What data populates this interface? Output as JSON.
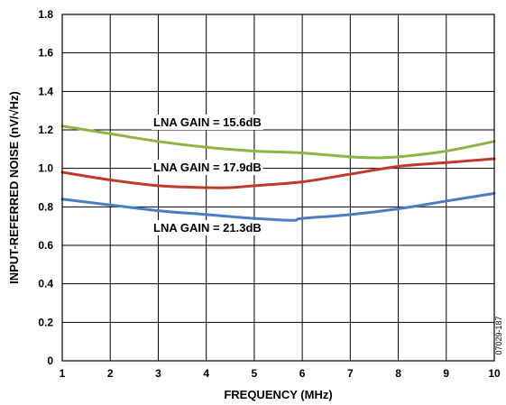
{
  "chart_data": {
    "type": "line",
    "xlabel": "FREQUENCY (MHz)",
    "ylabel": "INPUT-REFERRED NOISE (nV/√Hz)",
    "xlim": [
      1,
      10
    ],
    "ylim": [
      0,
      1.8
    ],
    "xticks": [
      "1",
      "2",
      "3",
      "4",
      "5",
      "6",
      "7",
      "8",
      "9",
      "10"
    ],
    "yticks": [
      "0",
      "0.2",
      "0.4",
      "0.6",
      "0.8",
      "1.0",
      "1.2",
      "1.4",
      "1.6",
      "1.8"
    ],
    "grid": true,
    "figure_code": "07029-187",
    "series": [
      {
        "name": "LNA GAIN = 15.6dB",
        "color": "#8db543",
        "x": [
          1,
          2,
          3,
          4,
          5,
          6,
          7,
          7.5,
          8,
          9,
          10
        ],
        "y": [
          1.22,
          1.18,
          1.14,
          1.11,
          1.09,
          1.08,
          1.06,
          1.055,
          1.06,
          1.09,
          1.14
        ]
      },
      {
        "name": "LNA GAIN = 17.9dB",
        "color": "#c0392b",
        "x": [
          1,
          2,
          3,
          4,
          4.5,
          5,
          6,
          7,
          8,
          9,
          10
        ],
        "y": [
          0.98,
          0.94,
          0.91,
          0.9,
          0.9,
          0.91,
          0.93,
          0.97,
          1.01,
          1.03,
          1.05
        ]
      },
      {
        "name": "LNA GAIN = 21.3dB",
        "color": "#4a7ec0",
        "x": [
          1,
          2,
          3,
          4,
          5,
          5.8,
          6,
          7,
          8,
          9,
          10
        ],
        "y": [
          0.84,
          0.81,
          0.78,
          0.76,
          0.74,
          0.73,
          0.74,
          0.76,
          0.79,
          0.83,
          0.87
        ]
      }
    ]
  }
}
